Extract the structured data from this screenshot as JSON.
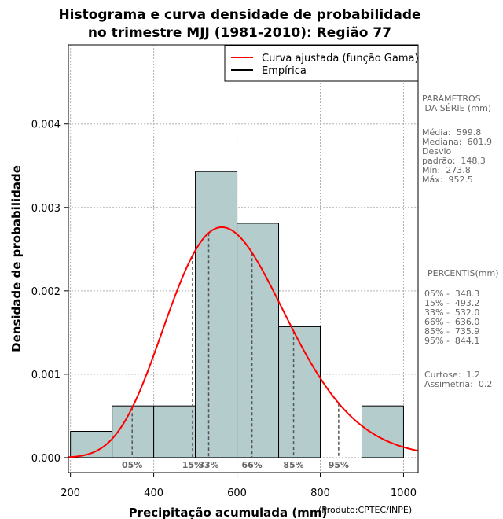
{
  "chart_data": {
    "type": "bar",
    "title_lines": [
      "Histograma e curva densidade de probabilidade",
      "no trimestre MJJ (1981-2010): Região 77"
    ],
    "xlabel": "Precipitação acumulada (mm)",
    "ylabel": "Densidade de probabilidade",
    "credit": "(Produto:CPTEC/INPE)",
    "xlim": [
      195,
      1035
    ],
    "ylim": [
      -0.00018,
      0.00495
    ],
    "x_ticks": [
      200,
      400,
      600,
      800,
      1000
    ],
    "x_tick_labels": [
      "200",
      "400",
      "600",
      "800",
      "1000"
    ],
    "y_ticks": [
      0,
      0.001,
      0.002,
      0.003,
      0.004
    ],
    "y_tick_labels": [
      "0.000",
      "0.001",
      "0.002",
      "0.003",
      "0.004"
    ],
    "grid": true,
    "bins": [
      {
        "start": 200,
        "end": 300,
        "density": 0.000315
      },
      {
        "start": 300,
        "end": 400,
        "density": 0.00062
      },
      {
        "start": 400,
        "end": 500,
        "density": 0.00062
      },
      {
        "start": 500,
        "end": 600,
        "density": 0.00343
      },
      {
        "start": 600,
        "end": 700,
        "density": 0.00281
      },
      {
        "start": 700,
        "end": 800,
        "density": 0.00157
      },
      {
        "start": 800,
        "end": 900,
        "density": 0
      },
      {
        "start": 900,
        "end": 1000,
        "density": 0.00062
      }
    ],
    "fitted_curve": {
      "name": "Curva ajustada (função Gama)",
      "color": "#ff0000",
      "distribution": "gamma",
      "shape": 16.4,
      "scale": 36.6
    },
    "empirical": {
      "name": "Empírica",
      "color": "#000000"
    },
    "percentiles": [
      {
        "label": "05%",
        "x": 348.3
      },
      {
        "label": "15%",
        "x": 493.2
      },
      {
        "label": "33%",
        "x": 532.0
      },
      {
        "label": "66%",
        "x": 636.0
      },
      {
        "label": "85%",
        "x": 735.9
      },
      {
        "label": "95%",
        "x": 844.1
      }
    ],
    "legend_position": "top-right",
    "bar_color": "#b4cccc"
  },
  "side_panel": {
    "params_title": "PARÂMETROS\n DA SÉRIE (mm)",
    "params_body": "Média:  599.8\nMediana:  601.9\nDesvio\npadrão:  148.3\nMín:  273.8\nMáx:  952.5",
    "percentis_title": "PERCENTIS(mm)",
    "percentis_body": "05% -  348.3\n15% -  493.2\n33% -  532.0\n66% -  636.0\n85% -  735.9\n95% -  844.1",
    "extra_body": "Curtose:  1.2\nAssimetria:  0.2"
  }
}
